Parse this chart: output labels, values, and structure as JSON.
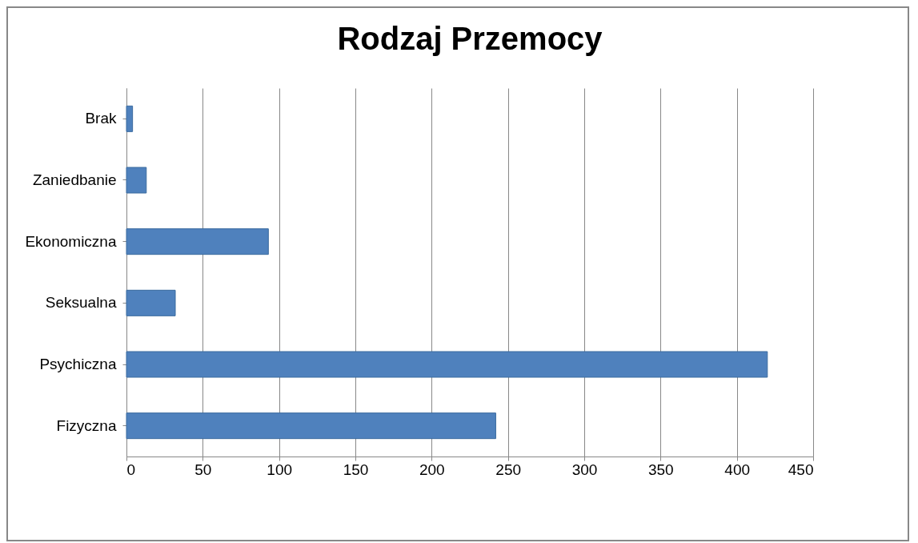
{
  "chart_data": {
    "type": "bar",
    "orientation": "horizontal",
    "title": "Rodzaj Przemocy",
    "categories": [
      "Brak",
      "Zaniedbanie",
      "Ekonomiczna",
      "Seksualna",
      "Psychiczna",
      "Fizyczna"
    ],
    "values": [
      4,
      13,
      93,
      32,
      420,
      242
    ],
    "color": "#4f81bd",
    "xlim": [
      0,
      450
    ],
    "xticks": [
      0,
      50,
      100,
      150,
      200,
      250,
      300,
      350,
      400,
      450
    ],
    "grid": "x"
  }
}
